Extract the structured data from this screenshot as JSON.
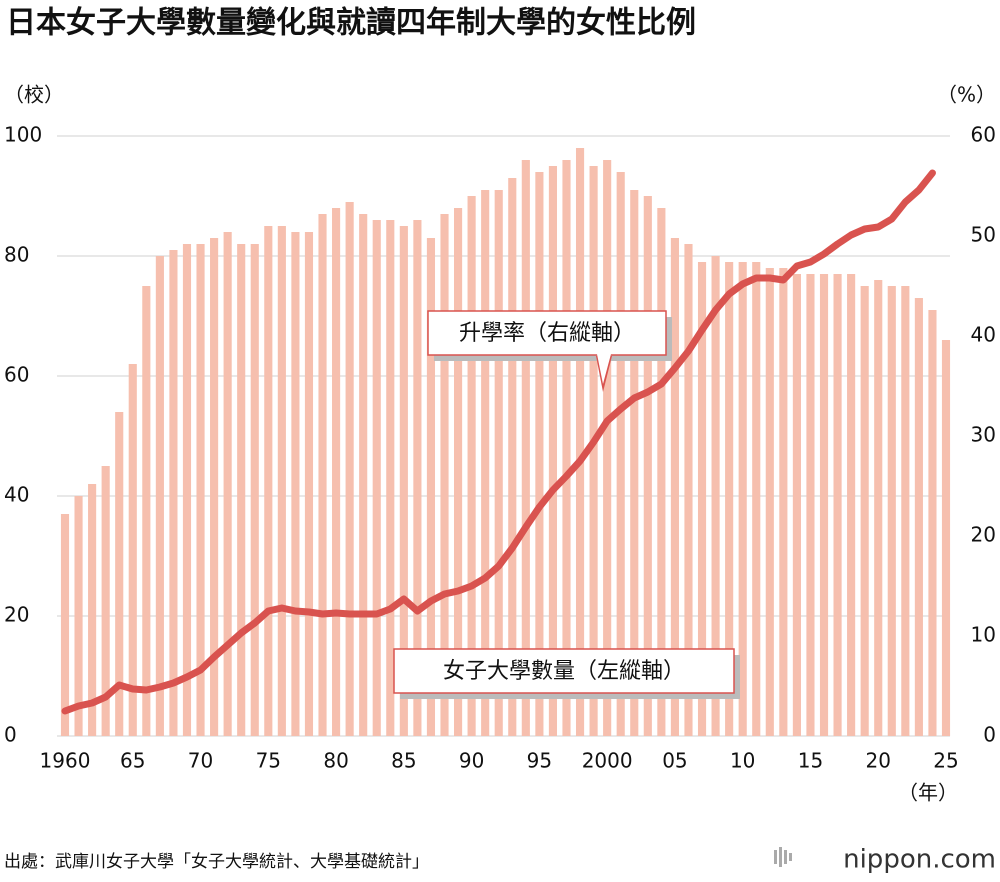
{
  "chart_data": {
    "type": "combo",
    "title": "日本女子大學數量變化與就讀四年制大學的女性比例",
    "y_label": "（校）",
    "y2_label": "（%）",
    "x_label": "（年）",
    "source": "出處：武庫川女子大學「女子大學統計、大學基礎統計」",
    "logo": "nippon.com",
    "annotations": [
      "升學率（右縱軸）",
      "女子大學數量（左縱軸）"
    ],
    "x": [
      1960,
      1961,
      1962,
      1963,
      1964,
      1965,
      1966,
      1967,
      1968,
      1969,
      1970,
      1971,
      1972,
      1973,
      1974,
      1975,
      1976,
      1977,
      1978,
      1979,
      1980,
      1981,
      1982,
      1983,
      1984,
      1985,
      1986,
      1987,
      1988,
      1989,
      1990,
      1991,
      1992,
      1993,
      1994,
      1995,
      1996,
      1997,
      1998,
      1999,
      2000,
      2001,
      2002,
      2003,
      2004,
      2005,
      2006,
      2007,
      2008,
      2009,
      2010,
      2011,
      2012,
      2013,
      2014,
      2015,
      2016,
      2017,
      2018,
      2019,
      2020,
      2021,
      2022,
      2023,
      2024,
      2025
    ],
    "xlim": [
      1960,
      2025
    ],
    "xticks": [
      1960,
      {
        "value": 1965,
        "label": "65"
      },
      {
        "value": 1970,
        "label": "70"
      },
      {
        "value": 1975,
        "label": "75"
      },
      {
        "value": 1980,
        "label": "80"
      },
      {
        "value": 1985,
        "label": "85"
      },
      {
        "value": 1990,
        "label": "90"
      },
      {
        "value": 1995,
        "label": "95"
      },
      2000,
      {
        "value": 2005,
        "label": "05"
      },
      {
        "value": 2010,
        "label": "10"
      },
      {
        "value": 2015,
        "label": "15"
      },
      {
        "value": 2020,
        "label": "20"
      },
      {
        "value": 2025,
        "label": "25"
      }
    ],
    "ylim": [
      0,
      100
    ],
    "yticks": [
      0,
      20,
      40,
      60,
      80,
      100
    ],
    "y2lim": [
      0,
      60
    ],
    "y2ticks": [
      0,
      10,
      20,
      30,
      40,
      50,
      60
    ],
    "grid": true,
    "series": [
      {
        "name": "女子大學數量",
        "type": "bar",
        "color": "#f6bfae",
        "values": [
          37,
          40,
          42,
          45,
          54,
          62,
          75,
          80,
          81,
          82,
          82,
          83,
          84,
          82,
          82,
          85,
          85,
          84,
          84,
          87,
          88,
          89,
          87,
          86,
          86,
          85,
          86,
          83,
          87,
          88,
          90,
          91,
          91,
          93,
          96,
          94,
          95,
          96,
          98,
          95,
          96,
          94,
          91,
          90,
          88,
          83,
          82,
          79,
          80,
          79,
          79,
          79,
          78,
          78,
          77,
          77,
          77,
          77,
          77,
          75,
          76,
          75,
          75,
          73,
          71,
          66
        ]
      },
      {
        "name": "升學率",
        "type": "line",
        "color": "#d9534f",
        "axis": "y2",
        "values": [
          2.5,
          3.0,
          3.3,
          3.9,
          5.1,
          4.7,
          4.6,
          4.9,
          5.3,
          5.9,
          6.6,
          7.9,
          9.1,
          10.3,
          11.3,
          12.5,
          12.8,
          12.5,
          12.4,
          12.2,
          12.3,
          12.2,
          12.2,
          12.2,
          12.7,
          13.7,
          12.5,
          13.5,
          14.2,
          14.5,
          15.0,
          15.8,
          17.0,
          18.8,
          20.9,
          22.9,
          24.6,
          26.0,
          27.5,
          29.4,
          31.5,
          32.7,
          33.8,
          34.4,
          35.2,
          36.8,
          38.5,
          40.6,
          42.6,
          44.2,
          45.2,
          45.8,
          45.8,
          45.6,
          47.0,
          47.4,
          48.2,
          49.2,
          50.1,
          50.7,
          50.9,
          51.7,
          53.4,
          54.6,
          56.3,
          null
        ]
      }
    ]
  }
}
